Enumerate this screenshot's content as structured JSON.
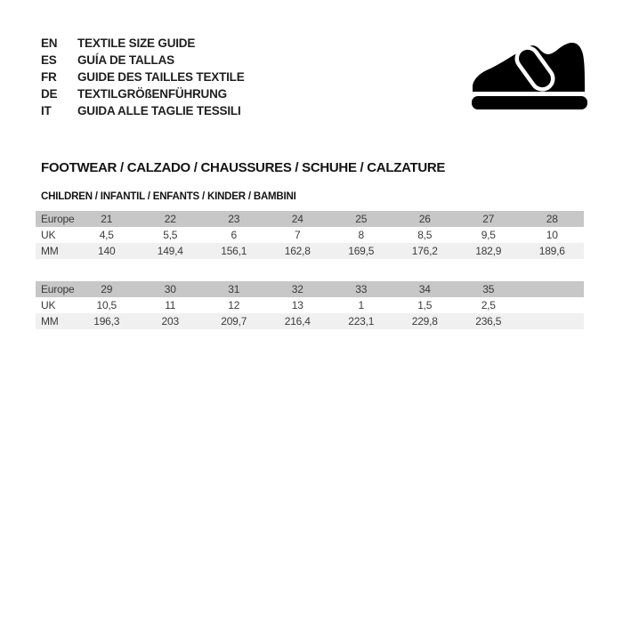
{
  "languages": [
    {
      "code": "EN",
      "title": "TEXTILE SIZE GUIDE"
    },
    {
      "code": "ES",
      "title": "GUÍA DE TALLAS"
    },
    {
      "code": "FR",
      "title": "GUIDE DES TAILLES TEXTILE"
    },
    {
      "code": "DE",
      "title": "TEXTILGRÖßENFÜHRUNG"
    },
    {
      "code": "IT",
      "title": "GUIDA ALLE TAGLIE TESSILI"
    }
  ],
  "icons": {
    "shoe": "children-shoe-icon"
  },
  "section": {
    "title": "FOOTWEAR / CALZADO / CHAUSSURES / SCHUHE / CALZATURE",
    "subtitle": "CHILDREN / INFANTIL / ENFANTS / KINDER / BAMBINI"
  },
  "size_tables": [
    {
      "rows": [
        {
          "label": "Europe",
          "values": [
            "21",
            "22",
            "23",
            "24",
            "25",
            "26",
            "27",
            "28"
          ]
        },
        {
          "label": "UK",
          "values": [
            "4,5",
            "5,5",
            "6",
            "7",
            "8",
            "8,5",
            "9,5",
            "10"
          ]
        },
        {
          "label": "MM",
          "values": [
            "140",
            "149,4",
            "156,1",
            "162,8",
            "169,5",
            "176,2",
            "182,9",
            "189,6"
          ]
        }
      ]
    },
    {
      "rows": [
        {
          "label": "Europe",
          "values": [
            "29",
            "30",
            "31",
            "32",
            "33",
            "34",
            "35",
            ""
          ]
        },
        {
          "label": "UK",
          "values": [
            "10,5",
            "11",
            "12",
            "13",
            "1",
            "1,5",
            "2,5",
            ""
          ]
        },
        {
          "label": "MM",
          "values": [
            "196,3",
            "203",
            "209,7",
            "216,4",
            "223,1",
            "229,8",
            "236,5",
            ""
          ]
        }
      ]
    }
  ],
  "colors": {
    "row_header_bg": "#c7c7c7",
    "row_alt_bg": "#f0f0f0",
    "table_text": "#3b3b3b",
    "heading_text": "#141414",
    "icon_fill": "#000000"
  }
}
